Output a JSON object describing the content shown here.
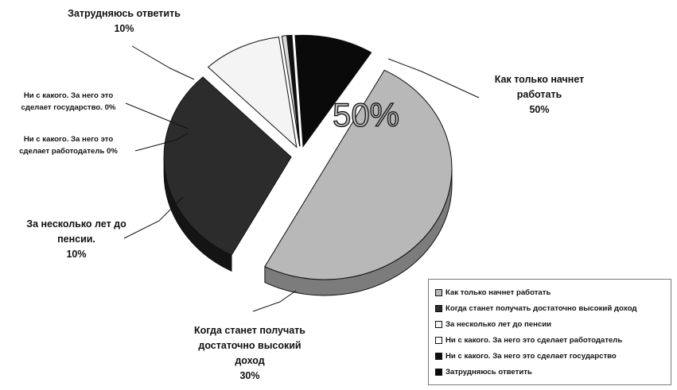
{
  "chart_data": {
    "type": "pie",
    "title": "",
    "center_label": "50%",
    "slices": [
      {
        "name": "Как только начнет работать",
        "value": 50,
        "color": "#b8b8b8",
        "side_color": "#7c7c7c",
        "callout": [
          "Как только начнет",
          "работать",
          "50%"
        ]
      },
      {
        "name": "Когда станет получать достаточно высокий доход",
        "value": 30,
        "color": "#2c2c2c",
        "side_color": "#141414",
        "callout": [
          "Когда станет получать",
          "достаточно высокий",
          "доход",
          "30%"
        ]
      },
      {
        "name": "За несколько лет до пенсии",
        "value": 10,
        "color": "#f4f4f4",
        "side_color": "#c9c9c9",
        "callout": [
          "За несколько лет до",
          "пенсии.",
          "10%"
        ]
      },
      {
        "name": "Ни с какого.  За него это сделает работодатель",
        "value": 0,
        "color": "#d9d9d9",
        "side_color": "#999999",
        "callout": [
          "Ни с какого.  За него это",
          "сделает работодатель 0%"
        ]
      },
      {
        "name": "Ни с какого.  За него это сделает государство",
        "value": 0,
        "color": "#111111",
        "side_color": "#000000",
        "callout": [
          "Ни с какого.  За него это",
          "сделает государство.  0%"
        ]
      },
      {
        "name": "Затрудняюсь ответить",
        "value": 10,
        "color": "#0a0a0a",
        "side_color": "#000000",
        "callout": [
          "Затрудняюсь ответить",
          "10%"
        ]
      }
    ],
    "legend": {
      "placement": "bottom-right",
      "items": [
        {
          "label": "Как только начнет работать",
          "color": "#b8b8b8"
        },
        {
          "label": "Когда станет получать достаточно высокий доход",
          "color": "#2c2c2c"
        },
        {
          "label": "За несколько лет до пенсии",
          "color": "#f4f4f4"
        },
        {
          "label": "Ни с какого.  За него это сделает работодатель",
          "color": "#ffffff"
        },
        {
          "label": "Ни с какого.  За него это сделает государство",
          "color": "#111111"
        },
        {
          "label": "Затрудняюсь ответить",
          "color": "#0a0a0a"
        }
      ]
    }
  }
}
